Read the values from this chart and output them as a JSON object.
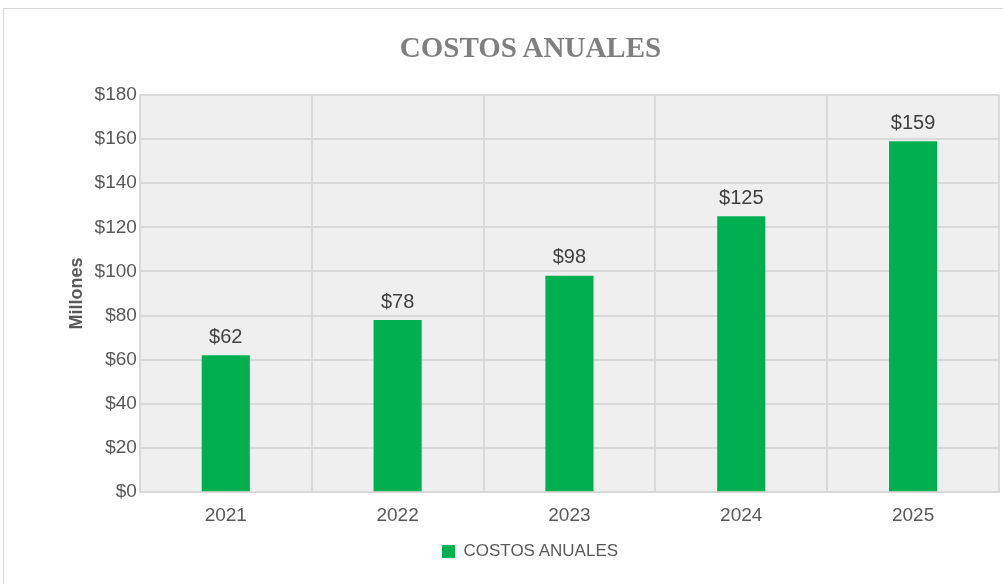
{
  "chart_data": {
    "type": "bar",
    "title": "COSTOS ANUALES",
    "ylabel": "Millones",
    "categories": [
      "2021",
      "2022",
      "2023",
      "2024",
      "2025"
    ],
    "series": [
      {
        "name": "COSTOS ANUALES",
        "color": "#00b050",
        "values": [
          62,
          78,
          98,
          125,
          159
        ],
        "value_labels": [
          "$62",
          "$78",
          "$98",
          "$125",
          "$159"
        ]
      }
    ],
    "ylim": [
      0,
      180
    ],
    "yticks": [
      {
        "value": 0,
        "label": "$0"
      },
      {
        "value": 20,
        "label": "$20"
      },
      {
        "value": 40,
        "label": "$40"
      },
      {
        "value": 60,
        "label": "$60"
      },
      {
        "value": 80,
        "label": "$80"
      },
      {
        "value": 100,
        "label": "$100"
      },
      {
        "value": 120,
        "label": "$120"
      },
      {
        "value": 140,
        "label": "$140"
      },
      {
        "value": 160,
        "label": "$160"
      },
      {
        "value": 180,
        "label": "$180"
      }
    ],
    "grid": true,
    "legend": "bottom"
  }
}
